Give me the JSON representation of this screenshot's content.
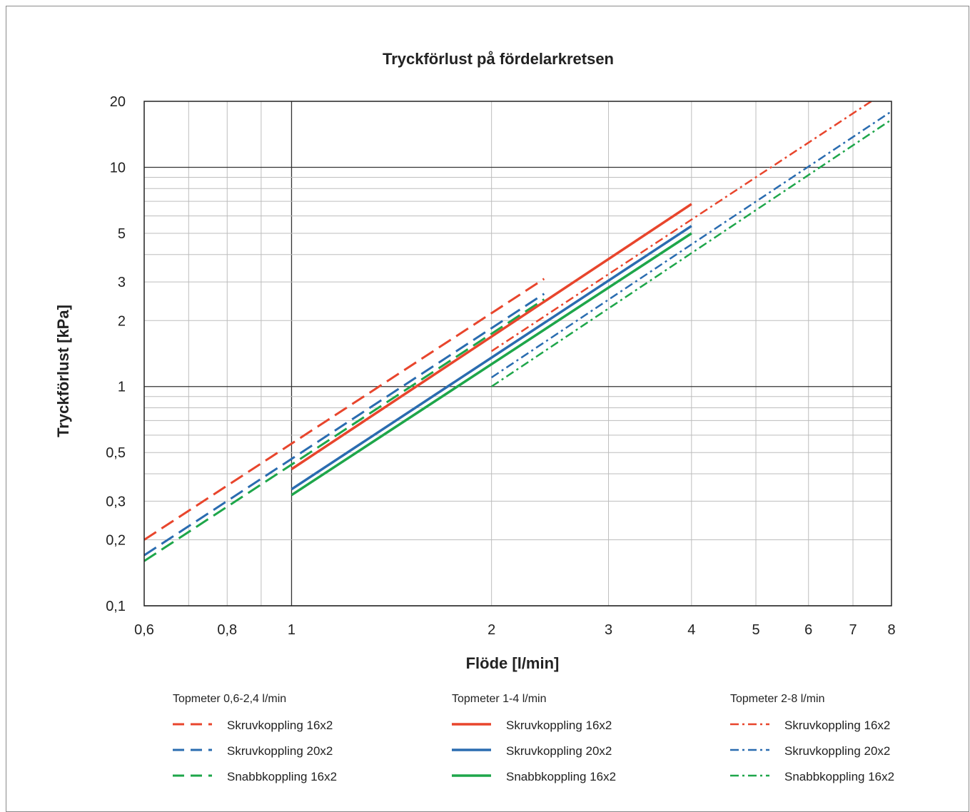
{
  "chart_data": {
    "type": "line",
    "title": "Tryckförlust på fördelarkretsen",
    "xlabel": "Flöde [l/min]",
    "ylabel": "Tryckförlust [kPa]",
    "x_scale": "log",
    "y_scale": "log",
    "xlim": [
      0.6,
      8
    ],
    "ylim": [
      0.1,
      20
    ],
    "grid": true,
    "x_ticks": [
      {
        "value": 0.6,
        "label": "0,6"
      },
      {
        "value": 0.8,
        "label": "0,8"
      },
      {
        "value": 1,
        "label": "1"
      },
      {
        "value": 2,
        "label": "2"
      },
      {
        "value": 3,
        "label": "3"
      },
      {
        "value": 4,
        "label": "4"
      },
      {
        "value": 5,
        "label": "5"
      },
      {
        "value": 6,
        "label": "6"
      },
      {
        "value": 7,
        "label": "7"
      },
      {
        "value": 8,
        "label": "8"
      }
    ],
    "y_ticks": [
      {
        "value": 0.1,
        "label": "0,1"
      },
      {
        "value": 0.2,
        "label": "0,2"
      },
      {
        "value": 0.3,
        "label": "0,3"
      },
      {
        "value": 0.5,
        "label": "0,5"
      },
      {
        "value": 1,
        "label": "1"
      },
      {
        "value": 2,
        "label": "2"
      },
      {
        "value": 3,
        "label": "3"
      },
      {
        "value": 5,
        "label": "5"
      },
      {
        "value": 10,
        "label": "10"
      },
      {
        "value": 20,
        "label": "20"
      }
    ],
    "x_gridlines": [
      0.6,
      0.7,
      0.8,
      0.9,
      1,
      2,
      3,
      4,
      5,
      6,
      7,
      8
    ],
    "y_gridlines": [
      0.1,
      0.2,
      0.3,
      0.4,
      0.5,
      0.6,
      0.7,
      0.8,
      0.9,
      1,
      2,
      3,
      4,
      5,
      6,
      7,
      8,
      9,
      10,
      20
    ],
    "legend_placement": "bottom",
    "legend_groups": [
      {
        "title": "Topmeter 0,6-2,4 l/min",
        "dash": "dashed"
      },
      {
        "title": "Topmeter 1-4 l/min",
        "dash": "solid"
      },
      {
        "title": "Topmeter 2-8 l/min",
        "dash": "dashdot"
      }
    ],
    "series": [
      {
        "name": "Skruvkoppling  16x2",
        "group": 0,
        "color": "#e8452c",
        "x": [
          0.6,
          2.4
        ],
        "y": [
          0.2,
          3.1
        ]
      },
      {
        "name": "Skruvkoppling  20x2",
        "group": 0,
        "color": "#2a6cb0",
        "x": [
          0.6,
          2.4
        ],
        "y": [
          0.17,
          2.65
        ]
      },
      {
        "name": "Snabbkoppling 16x2",
        "group": 0,
        "color": "#1ea64a",
        "x": [
          0.6,
          2.4
        ],
        "y": [
          0.16,
          2.5
        ]
      },
      {
        "name": "Skruvkoppling  16x2",
        "group": 1,
        "color": "#e8452c",
        "x": [
          1,
          4
        ],
        "y": [
          0.42,
          6.8
        ]
      },
      {
        "name": "Skruvkoppling  20x2",
        "group": 1,
        "color": "#2a6cb0",
        "x": [
          1,
          4
        ],
        "y": [
          0.34,
          5.4
        ]
      },
      {
        "name": "Snabbkoppling 16x2",
        "group": 1,
        "color": "#1ea64a",
        "x": [
          1,
          4
        ],
        "y": [
          0.32,
          5.0
        ]
      },
      {
        "name": "Skruvkoppling 16x2",
        "group": 2,
        "color": "#e8452c",
        "x": [
          2,
          8
        ],
        "y": [
          1.45,
          23
        ]
      },
      {
        "name": "Skruvkoppling  20x2",
        "group": 2,
        "color": "#2a6cb0",
        "x": [
          2,
          8
        ],
        "y": [
          1.1,
          18
        ]
      },
      {
        "name": "Snabbkoppling 16x2",
        "group": 2,
        "color": "#1ea64a",
        "x": [
          2,
          8
        ],
        "y": [
          1.0,
          16.5
        ]
      }
    ]
  }
}
